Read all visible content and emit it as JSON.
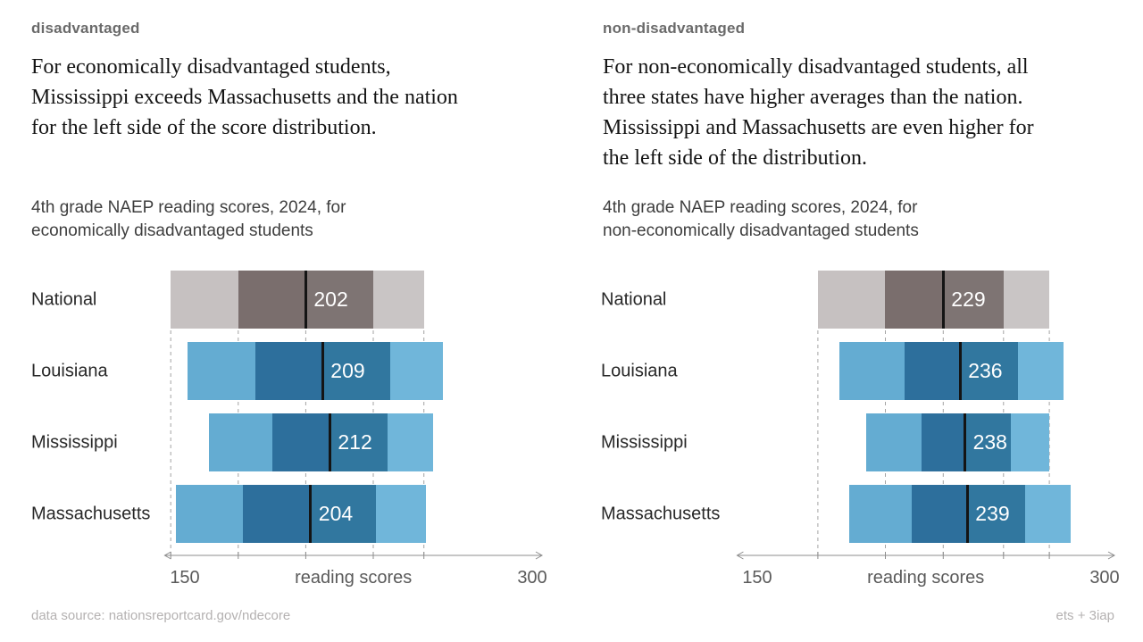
{
  "panels": [
    {
      "tag": "disadvantaged",
      "headline": "For economically disadvantaged students,\nMississippi exceeds Massachusetts and the nation\nfor the left side of the score distribution.",
      "chart_subtitle": "4th grade NAEP reading scores, 2024, for\neconomically disadvantaged students"
    },
    {
      "tag": "non-disadvantaged",
      "headline": "For non-economically disadvantaged students, all\nthree states have higher averages than the nation.\nMississippi and Massachusetts  are even higher for\nthe left side of the distribution.",
      "chart_subtitle": "4th grade NAEP reading scores, 2024, for\nnon-economically disadvantaged students"
    }
  ],
  "footer": {
    "left": "data source: nationsreportcard.gov/ndecore",
    "right": "ets + 3iap"
  },
  "colors": {
    "gray": {
      "outer_left": "#c6c1c1",
      "inner_left": "#7a6e6d",
      "inner_right": "#7e7473",
      "outer_right": "#c9c5c5"
    },
    "blue": {
      "outer_left": "#64acd2",
      "inner_left": "#2d6f9c",
      "inner_right": "#31779f",
      "outer_right": "#70b6da"
    },
    "mean_line": "#141414",
    "mean_text": "#ffffff",
    "gridline": "#a3a3a3",
    "axis": "#8c8c8c"
  },
  "chart_data": [
    {
      "type": "bar",
      "variant": "horizontal-percentile-range",
      "title": "4th grade NAEP reading scores, 2024, for economically disadvantaged students",
      "xlabel": "reading scores",
      "xlim": [
        143,
        300
      ],
      "axis_tick_labels": [
        "150",
        "300"
      ],
      "gridlines": "dashed, at National distribution boundaries",
      "categories": [
        "National",
        "Louisiana",
        "Mississippi",
        "Massachusetts"
      ],
      "rows": [
        {
          "label": "National",
          "p10": 146,
          "p25": 174,
          "mean": 202,
          "p75": 230,
          "p90": 251,
          "palette": "gray"
        },
        {
          "label": "Louisiana",
          "p10": 153,
          "p25": 181,
          "mean": 209,
          "p75": 237,
          "p90": 259,
          "palette": "blue"
        },
        {
          "label": "Mississippi",
          "p10": 162,
          "p25": 188,
          "mean": 212,
          "p75": 236,
          "p90": 255,
          "palette": "blue"
        },
        {
          "label": "Massachusetts",
          "p10": 148,
          "p25": 176,
          "mean": 204,
          "p75": 231,
          "p90": 252,
          "palette": "blue"
        }
      ]
    },
    {
      "type": "bar",
      "variant": "horizontal-percentile-range",
      "title": "4th grade NAEP reading scores, 2024, for non-economically disadvantaged students",
      "xlabel": "reading scores",
      "xlim": [
        143,
        300
      ],
      "axis_tick_labels": [
        "150",
        "300"
      ],
      "gridlines": "dashed, at National distribution boundaries",
      "categories": [
        "National",
        "Louisiana",
        "Mississippi",
        "Massachusetts"
      ],
      "rows": [
        {
          "label": "National",
          "p10": 177,
          "p25": 205,
          "mean": 229,
          "p75": 254,
          "p90": 273,
          "palette": "gray"
        },
        {
          "label": "Louisiana",
          "p10": 186,
          "p25": 213,
          "mean": 236,
          "p75": 260,
          "p90": 279,
          "palette": "blue"
        },
        {
          "label": "Mississippi",
          "p10": 197,
          "p25": 220,
          "mean": 238,
          "p75": 257,
          "p90": 273,
          "palette": "blue"
        },
        {
          "label": "Massachusetts",
          "p10": 190,
          "p25": 216,
          "mean": 239,
          "p75": 263,
          "p90": 282,
          "palette": "blue"
        }
      ]
    }
  ]
}
